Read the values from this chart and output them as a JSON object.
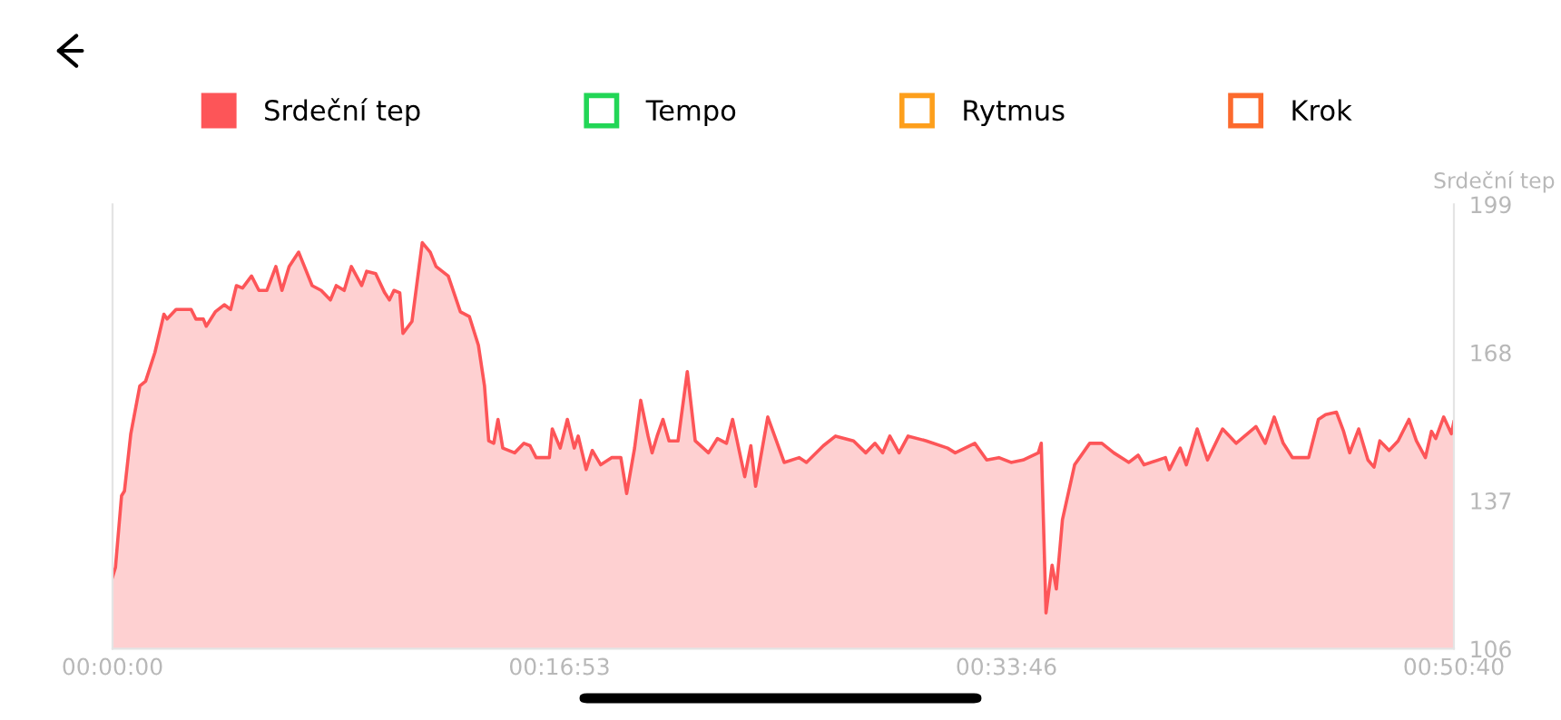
{
  "chart_data": {
    "type": "area",
    "ylabel": "Srdeční tep",
    "xlim": [
      0,
      50.667
    ],
    "ylim": [
      106,
      199
    ],
    "xticks": [
      {
        "value": 0,
        "label": "00:00:00"
      },
      {
        "value": 16.883,
        "label": "00:16:53"
      },
      {
        "value": 33.767,
        "label": "00:33:46"
      },
      {
        "value": 50.667,
        "label": "00:50:40"
      }
    ],
    "yticks": [
      106,
      137,
      168,
      199
    ],
    "grid": false,
    "legend": "top",
    "marker": "none",
    "line_style": "solid",
    "series": [
      {
        "name": "Srdeční tep",
        "color": "#fd5558",
        "x": [
          0,
          0.11,
          0.34,
          0.45,
          0.69,
          1.03,
          1.25,
          1.6,
          1.94,
          2.06,
          2.4,
          2.97,
          3.15,
          3.43,
          3.54,
          3.88,
          4.22,
          4.46,
          4.68,
          4.91,
          5.25,
          5.53,
          5.83,
          6.17,
          6.4,
          6.67,
          7.03,
          7.54,
          7.88,
          8.23,
          8.45,
          8.75,
          9.02,
          9.41,
          9.6,
          9.94,
          10.28,
          10.46,
          10.63,
          10.85,
          10.97,
          11.31,
          11.7,
          12.0,
          12.22,
          12.68,
          13.14,
          13.48,
          13.82,
          14.05,
          14.21,
          14.4,
          14.56,
          14.74,
          15.19,
          15.54,
          15.77,
          16.0,
          16.5,
          16.61,
          16.91,
          17.18,
          17.44,
          17.59,
          17.89,
          18.12,
          18.44,
          18.85,
          19.2,
          19.42,
          19.72,
          19.95,
          20.23,
          20.38,
          20.57,
          20.79,
          21.02,
          21.36,
          21.71,
          22.01,
          22.51,
          22.85,
          23.19,
          23.42,
          23.88,
          24.11,
          24.29,
          24.75,
          25.37,
          25.94,
          26.21,
          26.85,
          27.31,
          27.99,
          28.45,
          28.8,
          29.09,
          29.36,
          29.71,
          30.05,
          30.74,
          31.54,
          31.83,
          32.57,
          33.02,
          33.48,
          33.94,
          34.39,
          34.97,
          35.08,
          35.26,
          35.49,
          35.65,
          35.88,
          36.34,
          36.91,
          37.37,
          37.82,
          38.39,
          38.74,
          38.96,
          39.77,
          39.92,
          40.33,
          40.56,
          40.97,
          41.36,
          41.93,
          42.44,
          43.19,
          43.54,
          43.88,
          44.22,
          44.57,
          45.18,
          45.55,
          45.82,
          46.23,
          46.5,
          46.73,
          47.07,
          47.42,
          47.65,
          47.87,
          48.22,
          48.56,
          48.97,
          49.25,
          49.59,
          49.82,
          49.98,
          50.28,
          50.57,
          50.667
        ],
        "values": [
          121,
          123,
          138,
          139,
          151,
          161,
          162,
          168,
          176,
          175,
          177,
          177,
          175,
          175,
          173.5,
          176.5,
          178,
          177,
          182,
          181.5,
          184,
          181,
          181,
          186,
          181,
          186,
          189,
          182,
          181,
          179,
          182,
          181,
          186,
          182,
          185,
          184.5,
          180.5,
          179,
          181,
          180.5,
          172,
          174.5,
          191,
          189,
          186,
          184,
          176.5,
          175.5,
          169.5,
          161,
          149.5,
          149,
          154,
          148,
          147,
          149,
          148.5,
          146,
          146,
          152,
          148,
          154,
          148,
          150.5,
          143.5,
          147.5,
          144.5,
          146,
          146,
          138.5,
          148,
          158,
          150.5,
          147,
          150.5,
          154,
          149.5,
          149.5,
          164,
          149.5,
          147,
          150,
          149,
          154,
          142,
          148.5,
          140,
          154.5,
          145,
          146,
          145,
          148.5,
          150.5,
          149.5,
          147,
          149,
          147,
          150.5,
          147,
          150.5,
          149.5,
          148,
          147,
          149,
          145.5,
          146,
          145,
          145.5,
          147,
          149,
          113.5,
          123.5,
          118.5,
          133,
          144.5,
          149,
          149,
          147,
          145,
          146.5,
          144.5,
          146,
          143.5,
          148,
          144.5,
          152,
          145.5,
          152,
          149,
          152.5,
          149,
          154.5,
          149,
          146,
          146,
          154,
          155,
          155.5,
          151.5,
          147,
          152,
          145.5,
          144,
          149.5,
          147.5,
          149.5,
          154,
          149.5,
          146,
          151.5,
          150,
          154.5,
          151,
          153.5
        ]
      },
      {
        "name": "Tempo",
        "color": "#22d656"
      },
      {
        "name": "Rytmus",
        "color": "#fd9f1c"
      },
      {
        "name": "Krok",
        "color": "#fc6a2d"
      }
    ]
  }
}
